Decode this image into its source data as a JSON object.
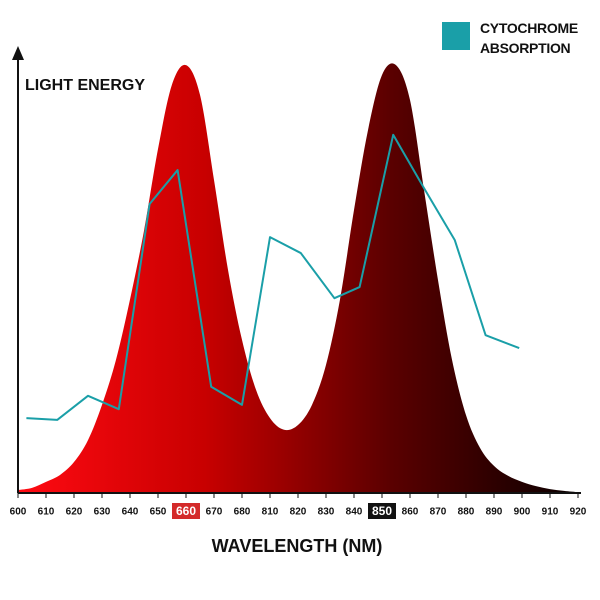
{
  "chart_data": {
    "type": "line",
    "ylabel": "LIGHT ENERGY",
    "xlabel": "WAVELENGTH (NM)",
    "xlim": [
      0,
      20
    ],
    "ylim": [
      0,
      100
    ],
    "xticks": [
      {
        "value": 0,
        "label": "600"
      },
      {
        "value": 1,
        "label": "610"
      },
      {
        "value": 2,
        "label": "620"
      },
      {
        "value": 3,
        "label": "630"
      },
      {
        "value": 4,
        "label": "640"
      },
      {
        "value": 5,
        "label": "650"
      },
      {
        "value": 6,
        "label": "660"
      },
      {
        "value": 7,
        "label": "670"
      },
      {
        "value": 8,
        "label": "680"
      },
      {
        "value": 9,
        "label": "810"
      },
      {
        "value": 10,
        "label": "820"
      },
      {
        "value": 11,
        "label": "830"
      },
      {
        "value": 12,
        "label": "840"
      },
      {
        "value": 13,
        "label": "850"
      },
      {
        "value": 14,
        "label": "860"
      },
      {
        "value": 15,
        "label": "870"
      },
      {
        "value": 16,
        "label": "880"
      },
      {
        "value": 17,
        "label": "890"
      },
      {
        "value": 18,
        "label": "900"
      },
      {
        "value": 19,
        "label": "910"
      },
      {
        "value": 20,
        "label": "920"
      }
    ],
    "highlighted_ticks": [
      {
        "tick": 6,
        "color": "#d42a2a"
      },
      {
        "tick": 13,
        "color": "#111111"
      }
    ],
    "area": {
      "gradient": [
        "#ff0a12",
        "#c80000",
        "#5a0000",
        "#0a0000"
      ],
      "x": [
        0,
        0.5,
        1,
        1.5,
        2,
        2.5,
        3,
        3.5,
        4,
        4.5,
        5,
        5.5,
        6,
        6.5,
        7,
        7.5,
        8,
        8.5,
        9,
        9.5,
        10,
        10.5,
        11,
        11.5,
        12,
        12.5,
        13,
        13.5,
        14,
        14.5,
        15,
        15.5,
        16,
        16.5,
        17,
        17.5,
        18,
        18.5,
        19,
        19.5,
        20
      ],
      "values": [
        0.7,
        1.2,
        2.6,
        4.2,
        7.2,
        12.3,
        20.5,
        31,
        45,
        61,
        80,
        95,
        99.5,
        92.6,
        72.8,
        51.9,
        35.6,
        24,
        17.4,
        14.7,
        15.8,
        20.5,
        29.8,
        45,
        65.8,
        84.4,
        97.2,
        99.5,
        91.4,
        70.5,
        49.5,
        31,
        18.1,
        10.5,
        6.3,
        4,
        2.6,
        1.6,
        0.9,
        0.5,
        0.2
      ]
    },
    "series": [
      {
        "name": "CYTOCHROME ABSORPTION",
        "color": "#1a9fa8",
        "x": [
          0.3,
          1.4,
          2.5,
          3.6,
          4.7,
          5.7,
          6.9,
          8.0,
          9.0,
          10.1,
          11.3,
          12.2,
          13.4,
          14.5,
          15.6,
          16.7,
          17.9
        ],
        "values": [
          17.4,
          17,
          22.6,
          19.5,
          67.2,
          75.1,
          24.7,
          20.5,
          59.5,
          55.8,
          45.3,
          47.9,
          83.3,
          70.9,
          58.8,
          36.7,
          33.7
        ]
      }
    ]
  }
}
